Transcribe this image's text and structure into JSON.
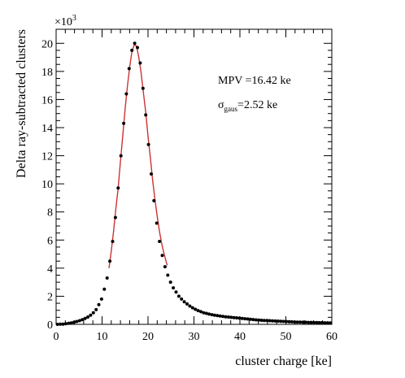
{
  "chart_data": {
    "type": "scatter",
    "xlabel": "cluster charge [ke]",
    "ylabel": "Delta ray-subtracted clusters",
    "y_multiplier": "×10",
    "y_multiplier_exp": "3",
    "xlim": [
      0,
      60
    ],
    "ylim": [
      0,
      21
    ],
    "x_ticks": [
      0,
      10,
      20,
      30,
      40,
      50,
      60
    ],
    "y_ticks": [
      0,
      2,
      4,
      6,
      8,
      10,
      12,
      14,
      16,
      18,
      20
    ],
    "grid": false,
    "legend": "none",
    "annotations": {
      "mpv": "MPV =16.42 ke",
      "sigma_symbol": "σ",
      "sigma_sub": "gaus",
      "sigma_value": "=2.52 ke"
    },
    "colors": {
      "points": "#000000",
      "fit": "#cc3333"
    },
    "points": {
      "x": [
        0.3,
        0.9,
        1.5,
        2.1,
        2.7,
        3.3,
        3.9,
        4.5,
        5.1,
        5.7,
        6.3,
        6.9,
        7.5,
        8.1,
        8.7,
        9.3,
        9.9,
        10.5,
        11.1,
        11.7,
        12.3,
        12.9,
        13.5,
        14.1,
        14.7,
        15.3,
        15.9,
        16.5,
        17.1,
        17.7,
        18.3,
        18.9,
        19.5,
        20.1,
        20.7,
        21.3,
        21.9,
        22.5,
        23.1,
        23.7,
        24.3,
        24.9,
        25.5,
        26.1,
        26.7,
        27.3,
        27.9,
        28.5,
        29.1,
        29.7,
        30.3,
        30.9,
        31.5,
        32.1,
        32.7,
        33.3,
        33.9,
        34.5,
        35.1,
        35.7,
        36.3,
        36.9,
        37.5,
        38.1,
        38.7,
        39.3,
        39.9,
        40.5,
        41.1,
        41.7,
        42.3,
        42.9,
        43.5,
        44.1,
        44.7,
        45.3,
        45.9,
        46.5,
        47.1,
        47.7,
        48.3,
        48.9,
        49.5,
        50.1,
        50.7,
        51.3,
        51.9,
        52.5,
        53.1,
        53.7,
        54.3,
        54.9,
        55.5,
        56.1,
        56.7,
        57.3,
        57.9,
        58.5,
        59.1,
        59.7
      ],
      "y": [
        0,
        0.01,
        0.02,
        0.04,
        0.07,
        0.1,
        0.15,
        0.2,
        0.26,
        0.33,
        0.42,
        0.52,
        0.65,
        0.82,
        1.05,
        1.4,
        1.8,
        2.5,
        3.3,
        4.5,
        5.9,
        7.6,
        9.7,
        12,
        14.3,
        16.4,
        18.2,
        19.5,
        20,
        19.7,
        18.6,
        16.8,
        14.9,
        12.8,
        10.7,
        8.8,
        7.2,
        5.9,
        4.9,
        4.1,
        3.5,
        3,
        2.6,
        2.3,
        2,
        1.8,
        1.6,
        1.45,
        1.3,
        1.18,
        1.07,
        0.98,
        0.9,
        0.83,
        0.78,
        0.73,
        0.69,
        0.65,
        0.62,
        0.59,
        0.56,
        0.54,
        0.52,
        0.5,
        0.48,
        0.46,
        0.44,
        0.42,
        0.4,
        0.38,
        0.36,
        0.34,
        0.32,
        0.3,
        0.29,
        0.28,
        0.27,
        0.26,
        0.25,
        0.24,
        0.23,
        0.22,
        0.21,
        0.2,
        0.19,
        0.18,
        0.17,
        0.16,
        0.16,
        0.15,
        0.15,
        0.14,
        0.14,
        0.13,
        0.13,
        0.12,
        0.12,
        0.11,
        0.11,
        0.1
      ]
    },
    "fit": {
      "x_range": [
        11.5,
        24.2
      ],
      "x": [
        11.5,
        12,
        12.5,
        13,
        13.5,
        14,
        14.5,
        15,
        15.5,
        16,
        16.5,
        17,
        17.5,
        18,
        18.5,
        19,
        19.5,
        20,
        20.5,
        21,
        21.5,
        22,
        22.5,
        23,
        23.5,
        24,
        24.2
      ],
      "y": [
        4.0,
        5.2,
        6.6,
        8.2,
        9.7,
        11.6,
        13.4,
        15.3,
        16.9,
        18.3,
        19.4,
        19.9,
        19.8,
        19.0,
        17.9,
        16.5,
        15.1,
        13.4,
        11.9,
        10.3,
        8.9,
        7.7,
        6.6,
        5.7,
        5.0,
        4.4,
        4.2
      ]
    }
  }
}
